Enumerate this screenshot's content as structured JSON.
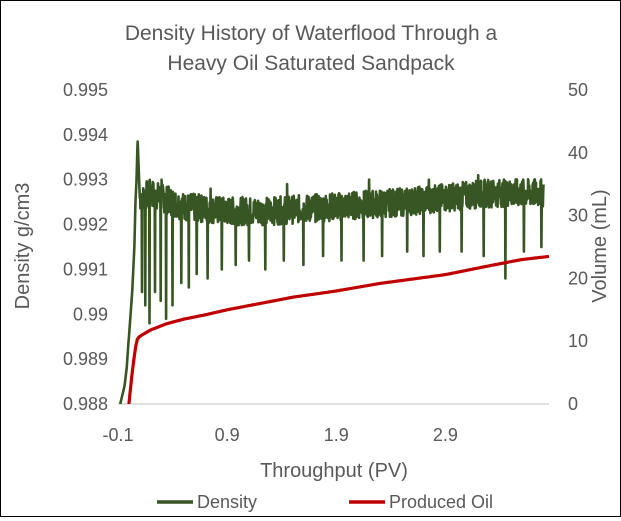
{
  "chart_data": {
    "type": "line",
    "title": "Density History of Waterflood Through a Heavy Oil Saturated Sandpack",
    "title_lines": [
      "Density History of Waterflood Through a",
      "Heavy Oil Saturated Sandpack"
    ],
    "xlabel": "Throughput (PV)",
    "ylabel": "Density g/cm3",
    "y2label": "Volume (mL)",
    "xlim": [
      -0.1,
      3.85
    ],
    "ylim": [
      0.988,
      0.995
    ],
    "y2lim": [
      0,
      50
    ],
    "x_ticks": [
      "-0.1",
      "0.9",
      "1.9",
      "2.9"
    ],
    "y_ticks": [
      "0.988",
      "0.989",
      "0.99",
      "0.991",
      "0.992",
      "0.993",
      "0.994",
      "0.995"
    ],
    "y2_ticks": [
      "0",
      "10",
      "20",
      "30",
      "40",
      "50"
    ],
    "grid": false,
    "legend_position": "bottom",
    "series": [
      {
        "name": "Density",
        "axis": "primary",
        "color": "#375623",
        "points": [
          [
            -0.08,
            0.988
          ],
          [
            -0.04,
            0.9884
          ],
          [
            -0.02,
            0.9888
          ],
          [
            0.0,
            0.9895
          ],
          [
            0.03,
            0.9905
          ],
          [
            0.05,
            0.9915
          ],
          [
            0.06,
            0.9925
          ],
          [
            0.07,
            0.993
          ],
          [
            0.08,
            0.9939
          ],
          [
            0.1,
            0.9926
          ],
          [
            0.2,
            0.9927
          ],
          [
            0.5,
            0.9924
          ],
          [
            0.9,
            0.9923
          ],
          [
            1.3,
            0.9923
          ],
          [
            1.9,
            0.9924
          ],
          [
            2.5,
            0.9925
          ],
          [
            2.9,
            0.9926
          ],
          [
            3.3,
            0.9927
          ],
          [
            3.8,
            0.9927
          ]
        ],
        "noise_band": [
          0.9915,
          0.9929
        ],
        "dips": [
          [
            0.12,
            0.9905
          ],
          [
            0.15,
            0.9902
          ],
          [
            0.19,
            0.9898
          ],
          [
            0.24,
            0.9905
          ],
          [
            0.29,
            0.9903
          ],
          [
            0.34,
            0.9899
          ],
          [
            0.4,
            0.9902
          ],
          [
            0.48,
            0.9907
          ],
          [
            0.55,
            0.9906
          ],
          [
            0.62,
            0.9909
          ],
          [
            0.72,
            0.9908
          ],
          [
            0.85,
            0.991
          ],
          [
            0.98,
            0.9911
          ],
          [
            1.1,
            0.9912
          ],
          [
            1.25,
            0.991
          ],
          [
            1.42,
            0.9912
          ],
          [
            1.6,
            0.9911
          ],
          [
            1.78,
            0.9913
          ],
          [
            1.95,
            0.9912
          ],
          [
            2.15,
            0.9912
          ],
          [
            2.32,
            0.9913
          ],
          [
            2.55,
            0.9914
          ],
          [
            2.7,
            0.9913
          ],
          [
            2.85,
            0.9914
          ],
          [
            3.05,
            0.9914
          ],
          [
            3.25,
            0.9913
          ],
          [
            3.45,
            0.9908
          ],
          [
            3.62,
            0.9914
          ],
          [
            3.78,
            0.9915
          ]
        ],
        "spikes": [
          [
            0.3,
            0.993
          ],
          [
            0.75,
            0.9928
          ],
          [
            1.45,
            0.9929
          ],
          [
            2.2,
            0.993
          ],
          [
            2.75,
            0.993
          ],
          [
            3.2,
            0.9931
          ],
          [
            3.5,
            0.9929
          ],
          [
            3.7,
            0.9929
          ]
        ]
      },
      {
        "name": "Produced Oil",
        "axis": "secondary",
        "color": "#c00000",
        "points": [
          [
            0.0,
            0.0
          ],
          [
            0.03,
            5.0
          ],
          [
            0.06,
            9.0
          ],
          [
            0.08,
            10.5
          ],
          [
            0.12,
            11.0
          ],
          [
            0.2,
            11.8
          ],
          [
            0.35,
            12.8
          ],
          [
            0.5,
            13.5
          ],
          [
            0.7,
            14.2
          ],
          [
            0.9,
            15.0
          ],
          [
            1.2,
            16.0
          ],
          [
            1.5,
            17.0
          ],
          [
            1.9,
            18.0
          ],
          [
            2.3,
            19.2
          ],
          [
            2.9,
            20.6
          ],
          [
            3.3,
            22.0
          ],
          [
            3.6,
            23.0
          ],
          [
            3.85,
            23.5
          ]
        ]
      }
    ]
  }
}
